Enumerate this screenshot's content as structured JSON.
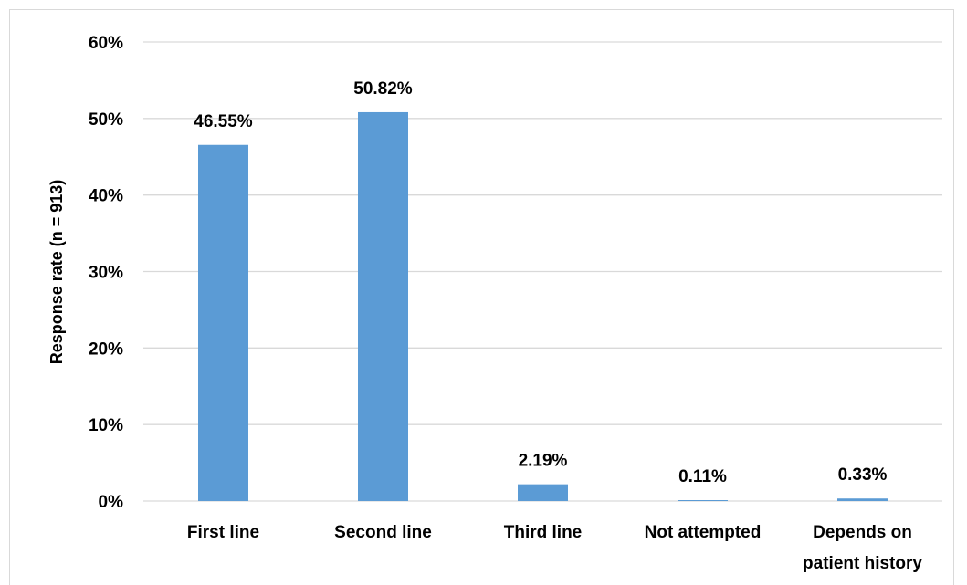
{
  "chart_data": {
    "type": "bar",
    "categories": [
      [
        "First line"
      ],
      [
        "Second line"
      ],
      [
        "Third line"
      ],
      [
        "Not attempted"
      ],
      [
        "Depends on",
        "patient history"
      ]
    ],
    "values": [
      46.55,
      50.82,
      2.19,
      0.11,
      0.33
    ],
    "data_labels": [
      "46.55%",
      "50.82%",
      "2.19%",
      "0.11%",
      "0.33%"
    ],
    "title": "",
    "xlabel": "",
    "ylabel": "Response rate (n = 913)",
    "ylim": [
      0,
      60
    ],
    "yticks": [
      0,
      10,
      20,
      30,
      40,
      50,
      60
    ],
    "ytick_labels": [
      "0%",
      "10%",
      "20%",
      "30%",
      "40%",
      "50%",
      "60%"
    ],
    "grid": true,
    "legend": "none",
    "bar_color": "#5b9bd5",
    "grid_color": "#d9d9d9"
  }
}
